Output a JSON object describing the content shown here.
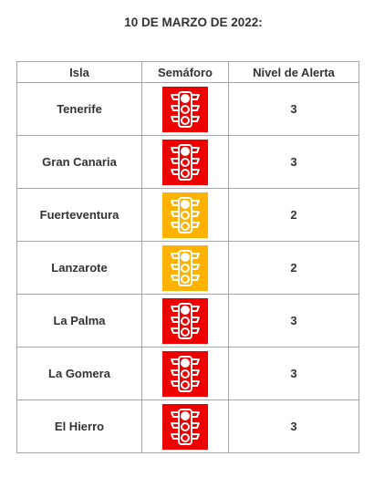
{
  "title": "10 DE MARZO DE 2022:",
  "table": {
    "headers": [
      "Isla",
      "Semáforo",
      "Nivel de Alerta"
    ],
    "rows": [
      {
        "isla": "Tenerife",
        "semaforo_color": "#ee0000",
        "semaforo_icon": "traffic-light-icon",
        "nivel": "3"
      },
      {
        "isla": "Gran Canaria",
        "semaforo_color": "#ee0000",
        "semaforo_icon": "traffic-light-icon",
        "nivel": "3"
      },
      {
        "isla": "Fuerteventura",
        "semaforo_color": "#ffb300",
        "semaforo_icon": "traffic-light-icon",
        "nivel": "2"
      },
      {
        "isla": "Lanzarote",
        "semaforo_color": "#ffb300",
        "semaforo_icon": "traffic-light-icon",
        "nivel": "2"
      },
      {
        "isla": "La Palma",
        "semaforo_color": "#ee0000",
        "semaforo_icon": "traffic-light-icon",
        "nivel": "3"
      },
      {
        "isla": "La Gomera",
        "semaforo_color": "#ee0000",
        "semaforo_icon": "traffic-light-icon",
        "nivel": "3"
      },
      {
        "isla": "El Hierro",
        "semaforo_color": "#ee0000",
        "semaforo_icon": "traffic-light-icon",
        "nivel": "3"
      }
    ]
  }
}
